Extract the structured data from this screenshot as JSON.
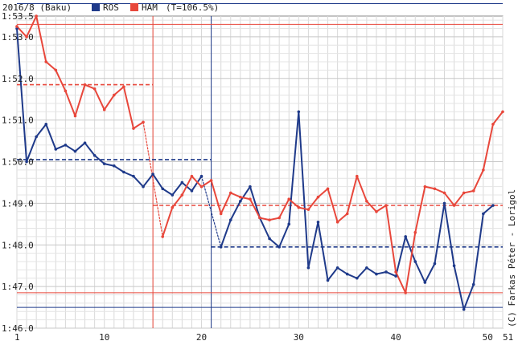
{
  "header": {
    "race": "2016/8 (Baku)",
    "legend": [
      {
        "code": "ROS",
        "color": "#1f3a8a"
      },
      {
        "code": "HAM",
        "color": "#e8473b"
      }
    ],
    "threshold": "(T=106.5%)"
  },
  "credit": "(C) Farkas Péter - Lorigol",
  "chart_data": {
    "type": "line",
    "title": "2016/8 (Baku)",
    "xlabel": "",
    "ylabel": "",
    "xlim": [
      1,
      51
    ],
    "ylim": [
      100,
      213.5
    ],
    "x_ticks": [
      1,
      10,
      20,
      30,
      40,
      50,
      51
    ],
    "y_ticks": [
      {
        "value": 100,
        "label": "1:46.0"
      },
      {
        "value": 101,
        "label": "1:47.0"
      },
      {
        "value": 102,
        "label": "1:48.0"
      },
      {
        "value": 103,
        "label": "1:49.0"
      },
      {
        "value": 104,
        "label": "1:50.0"
      },
      {
        "value": 105,
        "label": "1:51.0"
      },
      {
        "value": 106,
        "label": "1:52.0"
      },
      {
        "value": 107,
        "label": "1:53.0"
      },
      {
        "value": 107.5,
        "label": "1:53.5"
      }
    ],
    "grid": true,
    "vertical_markers": [
      {
        "x": 15,
        "series": "HAM"
      },
      {
        "x": 21,
        "series": "ROS"
      }
    ],
    "series": [
      {
        "name": "ROS",
        "color": "#1f3a8a",
        "values": [
          [
            1,
            107.2
          ],
          [
            2,
            104.0
          ],
          [
            3,
            104.6
          ],
          [
            4,
            104.9
          ],
          [
            5,
            104.3
          ],
          [
            6,
            104.4
          ],
          [
            7,
            104.25
          ],
          [
            8,
            104.45
          ],
          [
            9,
            104.15
          ],
          [
            10,
            103.95
          ],
          [
            11,
            103.9
          ],
          [
            12,
            103.75
          ],
          [
            13,
            103.65
          ],
          [
            14,
            103.4
          ],
          [
            15,
            103.7
          ],
          [
            16,
            103.35
          ],
          [
            17,
            103.2
          ],
          [
            18,
            103.5
          ],
          [
            19,
            103.3
          ],
          [
            20,
            103.65
          ],
          [
            22,
            101.95
          ],
          [
            23,
            102.6
          ],
          [
            24,
            103.05
          ],
          [
            25,
            103.4
          ],
          [
            26,
            102.65
          ],
          [
            27,
            102.15
          ],
          [
            28,
            101.95
          ],
          [
            29,
            102.5
          ],
          [
            30,
            105.2
          ],
          [
            31,
            101.45
          ],
          [
            32,
            102.55
          ],
          [
            33,
            101.15
          ],
          [
            34,
            101.45
          ],
          [
            35,
            101.3
          ],
          [
            36,
            101.2
          ],
          [
            37,
            101.45
          ],
          [
            38,
            101.3
          ],
          [
            39,
            101.35
          ],
          [
            40,
            101.25
          ],
          [
            41,
            102.2
          ],
          [
            42,
            101.6
          ],
          [
            43,
            101.1
          ],
          [
            44,
            101.55
          ],
          [
            45,
            103.0
          ],
          [
            46,
            101.5
          ],
          [
            47,
            100.45
          ],
          [
            48,
            101.05
          ],
          [
            49,
            102.75
          ],
          [
            50,
            102.95
          ]
        ],
        "stint_averages": [
          {
            "from": 1,
            "to": 21,
            "value": 104.05
          },
          {
            "from": 21,
            "to": 51,
            "value": 101.95
          }
        ],
        "reference_lines": [
          107.8,
          100.5
        ]
      },
      {
        "name": "HAM",
        "color": "#e8473b",
        "values": [
          [
            1,
            107.25
          ],
          [
            2,
            107.0
          ],
          [
            3,
            107.5
          ],
          [
            4,
            106.4
          ],
          [
            5,
            106.2
          ],
          [
            6,
            105.7
          ],
          [
            7,
            105.1
          ],
          [
            8,
            105.85
          ],
          [
            9,
            105.75
          ],
          [
            10,
            105.25
          ],
          [
            11,
            105.6
          ],
          [
            12,
            105.8
          ],
          [
            13,
            104.8
          ],
          [
            14,
            104.95
          ],
          [
            16,
            102.2
          ],
          [
            17,
            102.9
          ],
          [
            18,
            103.2
          ],
          [
            19,
            103.65
          ],
          [
            20,
            103.4
          ],
          [
            21,
            103.55
          ],
          [
            22,
            102.75
          ],
          [
            23,
            103.25
          ],
          [
            24,
            103.15
          ],
          [
            25,
            103.1
          ],
          [
            26,
            102.65
          ],
          [
            27,
            102.6
          ],
          [
            28,
            102.65
          ],
          [
            29,
            103.1
          ],
          [
            30,
            102.9
          ],
          [
            31,
            102.85
          ],
          [
            32,
            103.15
          ],
          [
            33,
            103.35
          ],
          [
            34,
            102.55
          ],
          [
            35,
            102.75
          ],
          [
            36,
            103.65
          ],
          [
            37,
            103.05
          ],
          [
            38,
            102.8
          ],
          [
            39,
            102.95
          ],
          [
            40,
            101.35
          ],
          [
            41,
            100.85
          ],
          [
            42,
            102.3
          ],
          [
            43,
            103.4
          ],
          [
            44,
            103.35
          ],
          [
            45,
            103.25
          ],
          [
            46,
            102.95
          ],
          [
            47,
            103.25
          ],
          [
            48,
            103.3
          ],
          [
            49,
            103.8
          ],
          [
            50,
            104.9
          ],
          [
            51,
            105.2
          ]
        ],
        "stint_averages": [
          {
            "from": 1,
            "to": 15,
            "value": 105.85
          },
          {
            "from": 15,
            "to": 51,
            "value": 102.95
          }
        ],
        "reference_lines": [
          107.3,
          100.85
        ]
      }
    ]
  }
}
